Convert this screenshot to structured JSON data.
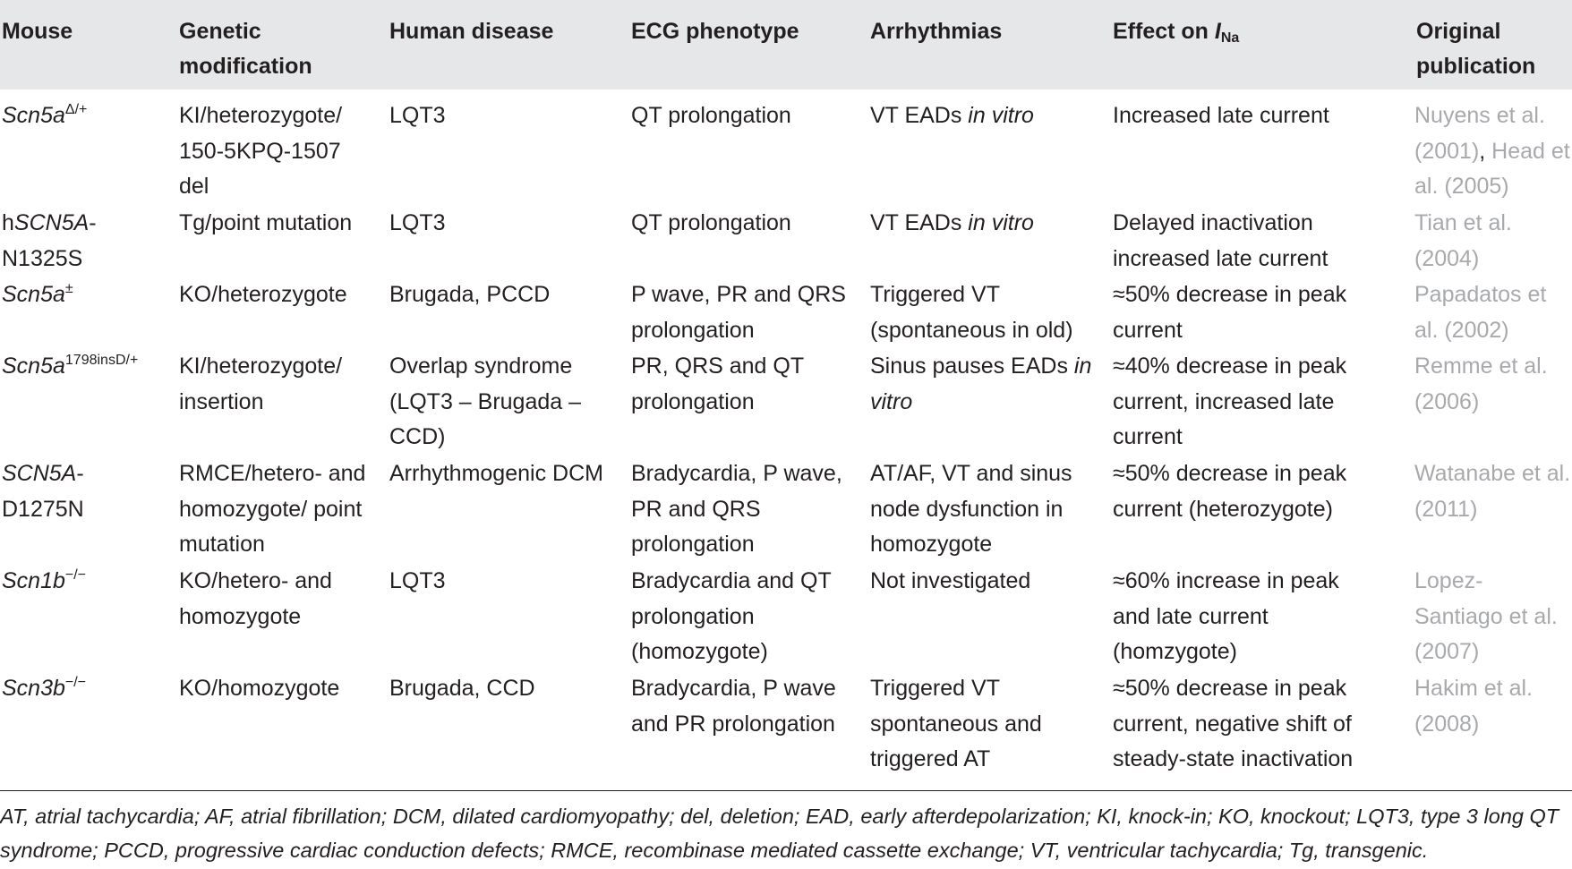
{
  "headers": {
    "mouse": "Mouse",
    "genetic": "Genetic modification",
    "disease": "Human disease",
    "ecg": "ECG phenotype",
    "arrhythmias": "Arrhythmias",
    "effect_prefix": "Effect on",
    "effect_symbol": "I",
    "effect_sub": "Na",
    "publication": "Original publication"
  },
  "rows": [
    {
      "mouse_base": "Scn5a",
      "mouse_sup": "Δ/+",
      "mouse_prefix": "",
      "mouse_suffix": "",
      "genetic": "KI/heterozygote/ 150-5KPQ-1507 del",
      "disease": "LQT3",
      "ecg": "QT prolongation",
      "arr_plain": "VT EADs",
      "arr_italic": "in vitro",
      "effect": "Increased late current",
      "pub": "Nuyens et al. (2001), Head et al. (2005)",
      "pub_dark": ","
    },
    {
      "mouse_base": "SCN5A",
      "mouse_sup": "",
      "mouse_prefix": "h",
      "mouse_suffix": "- N1325S",
      "genetic": "Tg/point mutation",
      "disease": "LQT3",
      "ecg": "QT prolongation",
      "arr_plain": "VT EADs",
      "arr_italic": "in vitro",
      "effect": "Delayed inactivation increased late current",
      "pub": "Tian et al. (2004)",
      "pub_dark": ""
    },
    {
      "mouse_base": "Scn5a",
      "mouse_sup": "±",
      "mouse_prefix": "",
      "mouse_suffix": "",
      "genetic": "KO/heterozygote",
      "disease": "Brugada, PCCD",
      "ecg": "P wave, PR and QRS prolongation",
      "arr_plain": "Triggered VT (spontaneous in old)",
      "arr_italic": "",
      "effect": "≈50% decrease in peak current",
      "pub": "Papadatos et al. (2002)",
      "pub_dark": ""
    },
    {
      "mouse_base": "Scn5a",
      "mouse_sup": "1798insD/+",
      "mouse_prefix": "",
      "mouse_suffix": "",
      "genetic": "KI/heterozygote/ insertion",
      "disease": "Overlap syndrome (LQT3 – Brugada – CCD)",
      "ecg": "PR, QRS and QT prolongation",
      "arr_plain": "Sinus pauses EADs",
      "arr_italic": "in vitro",
      "effect": "≈40% decrease in peak current, increased late current",
      "pub": "Remme et al. (2006)",
      "pub_dark": ""
    },
    {
      "mouse_base": "SCN5A",
      "mouse_sup": "",
      "mouse_prefix": "",
      "mouse_suffix": "- D1275N",
      "genetic": "RMCE/hetero- and homozygote/ point mutation",
      "disease": "Arrhythmogenic DCM",
      "ecg": "Bradycardia, P wave, PR and QRS prolongation",
      "arr_plain": "AT/AF, VT and sinus node dysfunction in homozygote",
      "arr_italic": "",
      "effect": "≈50% decrease in peak current (heterozygote)",
      "pub": "Watanabe et al. (2011)",
      "pub_dark": ""
    },
    {
      "mouse_base": "Scn1b",
      "mouse_sup": "−/−",
      "mouse_prefix": "",
      "mouse_suffix": "",
      "genetic": "KO/hetero- and homozygote",
      "disease": "LQT3",
      "ecg": "Bradycardia and QT prolongation (homozygote)",
      "arr_plain": "Not investigated",
      "arr_italic": "",
      "effect": "≈60% increase in peak and late current (homzygote)",
      "pub": "Lopez-Santiago et al. (2007)",
      "pub_dark": ""
    },
    {
      "mouse_base": "Scn3b",
      "mouse_sup": "−/−",
      "mouse_prefix": "",
      "mouse_suffix": "",
      "genetic": "KO/homozygote",
      "disease": "Brugada, CCD",
      "ecg": "Bradycardia, P wave and PR prolongation",
      "arr_plain": "Triggered VT spontaneous and triggered AT",
      "arr_italic": "",
      "effect": "≈50% decrease in peak current, negative shift of steady-state inactivation",
      "pub": "Hakim et al. (2008)",
      "pub_dark": ""
    }
  ],
  "footnote": "AT, atrial tachycardia; AF, atrial fibrillation; DCM, dilated cardiomyopathy; del, deletion; EAD, early afterdepolarization; KI, knock-in; KO, knockout; LQT3, type 3 long QT syndrome; PCCD, progressive cardiac conduction defects; RMCE, recombinase mediated cassette exchange; VT, ventricular tachycardia; Tg, transgenic."
}
